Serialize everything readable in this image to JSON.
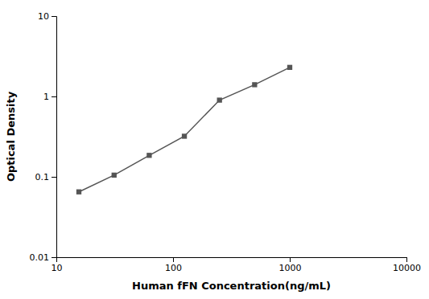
{
  "chart_data": {
    "type": "line",
    "x": [
      15.6,
      31.25,
      62.5,
      125,
      250,
      500,
      1000
    ],
    "values": [
      0.065,
      0.105,
      0.185,
      0.32,
      0.9,
      1.4,
      2.3
    ],
    "xlabel": "Human fFN Concentration(ng/mL)",
    "ylabel": "Optical Density",
    "xlim": [
      10,
      10000
    ],
    "ylim": [
      0.01,
      10
    ],
    "xticks": [
      10,
      100,
      1000,
      10000
    ],
    "yticks": [
      0.01,
      0.1,
      1,
      10
    ],
    "log": true,
    "grid": false,
    "color": "#555555",
    "marker": "square"
  }
}
